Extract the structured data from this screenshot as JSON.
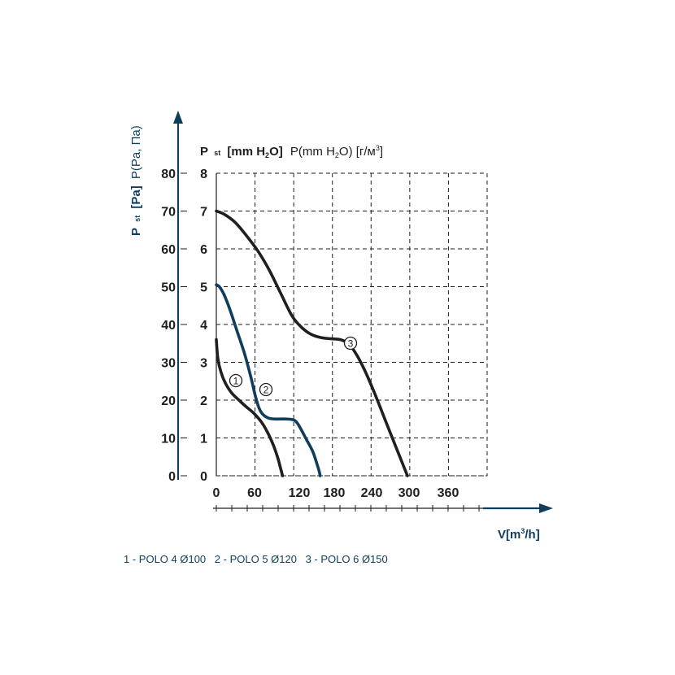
{
  "chart_data": {
    "type": "line",
    "left_axis": {
      "label_main": "P",
      "label_sub": "st",
      "label_rest": "[Pa]",
      "label_alt": "P(Pa, Па)",
      "ticks": [
        "0",
        "10",
        "20",
        "30",
        "40",
        "50",
        "60",
        "70",
        "80"
      ]
    },
    "inner_axis": {
      "label_main": "P",
      "label_sub": "st",
      "label_bold": "[mm H",
      "label_bold_sub": "2",
      "label_bold_end": "O]",
      "label_alt": "P(mm H",
      "label_alt_sub": "2",
      "label_alt_mid": "O) [г/м",
      "label_alt_sup": "3",
      "label_alt_end": "]",
      "ticks": [
        "0",
        "1",
        "2",
        "3",
        "4",
        "5",
        "6",
        "7",
        "8"
      ],
      "ylim": [
        0,
        8
      ]
    },
    "x_axis": {
      "label": "V[m",
      "label_sup": "3",
      "label_end": "/h]",
      "ticks": [
        "0",
        "60",
        "120",
        "180",
        "240",
        "300",
        "360"
      ],
      "xlim": [
        0,
        360
      ]
    },
    "series": [
      {
        "name": "1",
        "color": "#1f1f1f",
        "points": [
          [
            0,
            3.6
          ],
          [
            2,
            3.1
          ],
          [
            6,
            2.75
          ],
          [
            12,
            2.45
          ],
          [
            20,
            2.2
          ],
          [
            30,
            2.0
          ],
          [
            40,
            1.82
          ],
          [
            50,
            1.65
          ],
          [
            60,
            1.42
          ],
          [
            68,
            1.15
          ],
          [
            76,
            0.8
          ],
          [
            82,
            0.45
          ],
          [
            86,
            0.15
          ],
          [
            88,
            0
          ]
        ]
      },
      {
        "name": "2",
        "color": "#0f3e5c",
        "points": [
          [
            0,
            5.05
          ],
          [
            4,
            5.0
          ],
          [
            10,
            4.8
          ],
          [
            18,
            4.4
          ],
          [
            28,
            3.8
          ],
          [
            38,
            3.2
          ],
          [
            46,
            2.6
          ],
          [
            52,
            2.1
          ],
          [
            57,
            1.78
          ],
          [
            62,
            1.62
          ],
          [
            70,
            1.52
          ],
          [
            80,
            1.5
          ],
          [
            95,
            1.5
          ],
          [
            105,
            1.45
          ],
          [
            112,
            1.25
          ],
          [
            120,
            0.95
          ],
          [
            128,
            0.65
          ],
          [
            134,
            0.3
          ],
          [
            137,
            0.1
          ],
          [
            138,
            0
          ]
        ]
      },
      {
        "name": "3",
        "color": "#1f1f1f",
        "points": [
          [
            0,
            7.0
          ],
          [
            10,
            6.92
          ],
          [
            25,
            6.7
          ],
          [
            40,
            6.35
          ],
          [
            55,
            5.95
          ],
          [
            70,
            5.45
          ],
          [
            85,
            4.85
          ],
          [
            100,
            4.25
          ],
          [
            112,
            3.95
          ],
          [
            125,
            3.75
          ],
          [
            140,
            3.65
          ],
          [
            155,
            3.62
          ],
          [
            165,
            3.6
          ],
          [
            175,
            3.5
          ],
          [
            185,
            3.25
          ],
          [
            197,
            2.8
          ],
          [
            210,
            2.2
          ],
          [
            225,
            1.45
          ],
          [
            238,
            0.8
          ],
          [
            248,
            0.3
          ],
          [
            254,
            0
          ]
        ]
      }
    ],
    "legend_items": [
      "1 - POLO 4 Ø100",
      "2 - POLO 5 Ø120",
      "3 - POLO 6 Ø150"
    ]
  }
}
